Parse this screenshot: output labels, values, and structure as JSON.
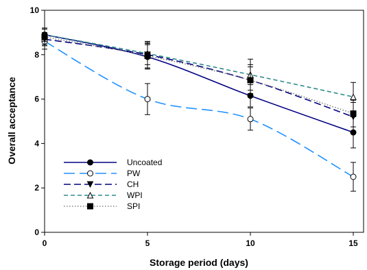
{
  "chart_data": {
    "type": "line",
    "x": [
      0,
      5,
      10,
      15
    ],
    "xlabel": "Storage period (days)",
    "ylabel": "Overall acceptance",
    "xlim": [
      0,
      15.5
    ],
    "ylim": [
      0,
      10
    ],
    "xticks": [
      0,
      5,
      10,
      15
    ],
    "yticks": [
      0,
      2,
      4,
      6,
      8,
      10
    ],
    "grid": false,
    "legend_position": "lower-left",
    "series": [
      {
        "name": "Uncoated",
        "values": [
          8.9,
          7.9,
          6.15,
          4.5
        ],
        "errors": [
          0.3,
          0.55,
          0.5,
          0.7
        ],
        "color": "#000080",
        "dash": "solid",
        "marker": "circle",
        "marker_fill": "filled"
      },
      {
        "name": "PW",
        "values": [
          8.6,
          6.0,
          5.1,
          2.5
        ],
        "errors": [
          0.35,
          0.7,
          0.5,
          0.65
        ],
        "color": "#1E90FF",
        "dash": "long-dash",
        "marker": "circle",
        "marker_fill": "open"
      },
      {
        "name": "CH",
        "values": [
          8.7,
          8.0,
          6.85,
          5.2
        ],
        "errors": [
          0.3,
          0.6,
          0.6,
          0.65
        ],
        "color": "#000080",
        "dash": "dash",
        "marker": "triangle-down",
        "marker_fill": "filled"
      },
      {
        "name": "WPI",
        "values": [
          8.9,
          8.05,
          7.1,
          6.1
        ],
        "errors": [
          0.3,
          0.5,
          0.7,
          0.65
        ],
        "color": "#2E8B8B",
        "dash": "short-dash",
        "marker": "triangle-up",
        "marker_fill": "open"
      },
      {
        "name": "SPI",
        "values": [
          8.8,
          7.95,
          6.85,
          5.35
        ],
        "errors": [
          0.35,
          0.55,
          0.7,
          0.6
        ],
        "color": "#808080",
        "dash": "dot",
        "marker": "square",
        "marker_fill": "filled"
      }
    ]
  }
}
